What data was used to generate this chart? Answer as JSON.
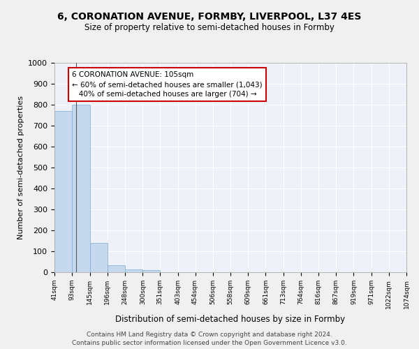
{
  "title1": "6, CORONATION AVENUE, FORMBY, LIVERPOOL, L37 4ES",
  "title2": "Size of property relative to semi-detached houses in Formby",
  "xlabel": "Distribution of semi-detached houses by size in Formby",
  "ylabel": "Number of semi-detached properties",
  "bar_color": "#c5d8ed",
  "bar_edge_color": "#7aadd4",
  "property_line_x": 105,
  "bin_edges": [
    41,
    93,
    145,
    196,
    248,
    300,
    351,
    403,
    454,
    506,
    558,
    609,
    661,
    713,
    764,
    816,
    867,
    919,
    971,
    1022,
    1074
  ],
  "bin_labels": [
    "41sqm",
    "93sqm",
    "145sqm",
    "196sqm",
    "248sqm",
    "300sqm",
    "351sqm",
    "403sqm",
    "454sqm",
    "506sqm",
    "558sqm",
    "609sqm",
    "661sqm",
    "713sqm",
    "764sqm",
    "816sqm",
    "867sqm",
    "919sqm",
    "971sqm",
    "1022sqm",
    "1074sqm"
  ],
  "counts": [
    770,
    800,
    140,
    35,
    15,
    10,
    0,
    0,
    0,
    0,
    0,
    0,
    0,
    0,
    0,
    0,
    0,
    0,
    0,
    0
  ],
  "annotation_line1": "6 CORONATION AVENUE: 105sqm",
  "annotation_line2": "← 60% of semi-detached houses are smaller (1,043)",
  "annotation_line3": "   40% of semi-detached houses are larger (704) →",
  "annotation_box_color": "#ffffff",
  "annotation_box_edge_color": "#cc0000",
  "ylim": [
    0,
    1000
  ],
  "yticks": [
    0,
    100,
    200,
    300,
    400,
    500,
    600,
    700,
    800,
    900,
    1000
  ],
  "background_color": "#eef2f8",
  "grid_color": "#ffffff",
  "footer1": "Contains HM Land Registry data © Crown copyright and database right 2024.",
  "footer2": "Contains public sector information licensed under the Open Government Licence v3.0."
}
